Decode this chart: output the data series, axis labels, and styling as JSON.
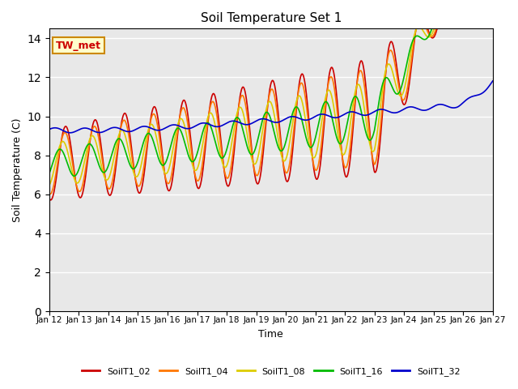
{
  "title": "Soil Temperature Set 1",
  "xlabel": "Time",
  "ylabel": "Soil Temperature (C)",
  "ylim": [
    0,
    14.5
  ],
  "yticks": [
    0,
    2,
    4,
    6,
    8,
    10,
    12,
    14
  ],
  "x_tick_labels": [
    "Jan 12",
    "Jan 13",
    "Jan 14",
    "Jan 15",
    "Jan 16",
    "Jan 17",
    "Jan 18",
    "Jan 19",
    "Jan 20",
    "Jan 21",
    "Jan 22",
    "Jan 23",
    "Jan 24",
    "Jan 25",
    "Jan 26",
    "Jan 27"
  ],
  "colors": {
    "SoilT1_02": "#cc0000",
    "SoilT1_04": "#ff7700",
    "SoilT1_08": "#ddcc00",
    "SoilT1_16": "#00bb00",
    "SoilT1_32": "#0000cc"
  },
  "annotation_text": "TW_met",
  "annotation_bg": "#ffffcc",
  "annotation_border": "#cc8800",
  "annotation_text_color": "#cc0000",
  "bg_color": "#e8e8e8",
  "fig_bg": "#ffffff",
  "linewidth": 1.2
}
